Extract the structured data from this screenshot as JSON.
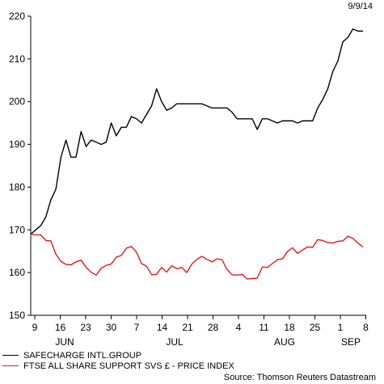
{
  "header": {
    "date": "9/9/14"
  },
  "source": "Source: Thomson Reuters Datastream",
  "chart_data": {
    "type": "line",
    "ylim": [
      150,
      220
    ],
    "yticks": [
      150,
      160,
      170,
      180,
      190,
      200,
      210,
      220
    ],
    "x_day_ticks": [
      "9",
      "16",
      "23",
      "30",
      "7",
      "14",
      "21",
      "28",
      "4",
      "11",
      "18",
      "25",
      "1",
      "8"
    ],
    "x_month_labels": [
      "JUN",
      "JUL",
      "AUG",
      "SEP"
    ],
    "grid": false,
    "legend_position": "bottom-left",
    "series": [
      {
        "name": "SAFECHARGE INTL.GROUP",
        "color": "#000000",
        "values": [
          169,
          170,
          171,
          173,
          177,
          179.5,
          187,
          191,
          187,
          187,
          193,
          189.5,
          191,
          190.5,
          190,
          190.5,
          195,
          192,
          194,
          194,
          196.5,
          196,
          195,
          197,
          199,
          203,
          200,
          198,
          198.5,
          199.5,
          199.5,
          199.5,
          199.5,
          199.5,
          199.5,
          199,
          198.5,
          198.5,
          198.5,
          198.5,
          197.5,
          196,
          196,
          196,
          196,
          193.5,
          196,
          196,
          195.5,
          195,
          195.5,
          195.5,
          195.5,
          195,
          195.5,
          195.5,
          195.5,
          198.5,
          200.5,
          203,
          207,
          209.5,
          214,
          215,
          217,
          216.5,
          216.5
        ]
      },
      {
        "name": "FTSE ALL SHARE SUPPORT SVS £ - PRICE INDEX",
        "color": "#e21b1b",
        "values": [
          169,
          168.8,
          168.8,
          167.5,
          167.4,
          164.3,
          162.6,
          161.9,
          161.8,
          162.5,
          162.9,
          161.2,
          160.1,
          159.4,
          161,
          161.7,
          162,
          163.6,
          164,
          165.7,
          166.1,
          164.8,
          162.1,
          161.5,
          159.5,
          159.6,
          161.2,
          160.1,
          161.6,
          160.9,
          161.2,
          160,
          162,
          163.1,
          163.8,
          163.1,
          162.5,
          163.2,
          163,
          160.7,
          159.5,
          159.4,
          159.6,
          158.5,
          158.6,
          158.7,
          161.3,
          161.2,
          162.1,
          163,
          163.2,
          164.9,
          165.8,
          164.5,
          165.3,
          166,
          165.9,
          167.7,
          167.5,
          167,
          166.9,
          167.3,
          167.4,
          168.5,
          168,
          166.9,
          166
        ]
      }
    ]
  }
}
